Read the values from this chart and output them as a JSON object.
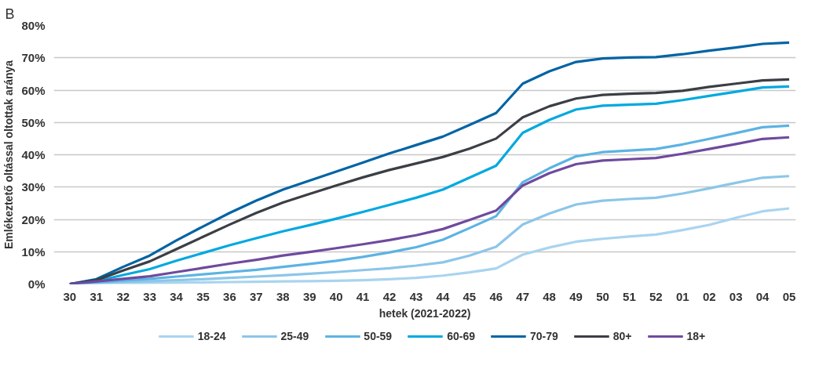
{
  "chart_data": {
    "type": "line",
    "xlabel": "hetek (2021-2022)",
    "ylabel": "Emlékeztető oltással oltottak aránya",
    "annotations": [
      "B"
    ],
    "categories": [
      "30",
      "31",
      "32",
      "33",
      "34",
      "35",
      "36",
      "37",
      "38",
      "39",
      "40",
      "41",
      "42",
      "43",
      "44",
      "45",
      "46",
      "47",
      "48",
      "49",
      "50",
      "51",
      "52",
      "01",
      "02",
      "03",
      "04",
      "05"
    ],
    "ylim": [
      0,
      0.8
    ],
    "yticks": [
      {
        "value": 0,
        "label": "0%"
      },
      {
        "value": 0.1,
        "label": "10%"
      },
      {
        "value": 0.2,
        "label": "20%"
      },
      {
        "value": 0.3,
        "label": "30%"
      },
      {
        "value": 0.4,
        "label": "40%"
      },
      {
        "value": 0.5,
        "label": "50%"
      },
      {
        "value": 0.6,
        "label": "60%"
      },
      {
        "value": 0.7,
        "label": "70%"
      },
      {
        "value": 0.8,
        "label": "80%"
      }
    ],
    "grid": "y",
    "legend": "bottom",
    "marker": "none",
    "line_style": "solid",
    "series": [
      {
        "name": "18-24",
        "color": "#a9d4ef",
        "values": [
          0,
          0.001,
          0.002,
          0.003,
          0.004,
          0.005,
          0.006,
          0.007,
          0.008,
          0.009,
          0.01,
          0.012,
          0.015,
          0.019,
          0.026,
          0.036,
          0.048,
          0.091,
          0.113,
          0.131,
          0.14,
          0.147,
          0.153,
          0.167,
          0.183,
          0.205,
          0.225,
          0.234
        ]
      },
      {
        "name": "25-49",
        "color": "#8cc6e8",
        "values": [
          0,
          0.003,
          0.006,
          0.009,
          0.012,
          0.015,
          0.019,
          0.023,
          0.027,
          0.032,
          0.037,
          0.043,
          0.049,
          0.057,
          0.067,
          0.088,
          0.115,
          0.184,
          0.218,
          0.246,
          0.258,
          0.263,
          0.267,
          0.28,
          0.296,
          0.313,
          0.329,
          0.334
        ]
      },
      {
        "name": "50-59",
        "color": "#5cb3e3",
        "values": [
          0,
          0.005,
          0.011,
          0.016,
          0.023,
          0.03,
          0.037,
          0.044,
          0.053,
          0.062,
          0.072,
          0.084,
          0.098,
          0.114,
          0.137,
          0.173,
          0.21,
          0.315,
          0.358,
          0.395,
          0.408,
          0.413,
          0.418,
          0.432,
          0.449,
          0.467,
          0.485,
          0.49
        ]
      },
      {
        "name": "60-69",
        "color": "#00a9e0",
        "values": [
          0,
          0.009,
          0.028,
          0.046,
          0.072,
          0.096,
          0.12,
          0.142,
          0.163,
          0.182,
          0.202,
          0.223,
          0.245,
          0.267,
          0.292,
          0.329,
          0.366,
          0.468,
          0.508,
          0.54,
          0.552,
          0.555,
          0.558,
          0.569,
          0.582,
          0.595,
          0.608,
          0.611
        ]
      },
      {
        "name": "70-79",
        "color": "#0064a4",
        "values": [
          0,
          0.015,
          0.053,
          0.088,
          0.135,
          0.178,
          0.22,
          0.258,
          0.292,
          0.32,
          0.348,
          0.376,
          0.404,
          0.43,
          0.456,
          0.492,
          0.529,
          0.62,
          0.658,
          0.687,
          0.698,
          0.701,
          0.702,
          0.711,
          0.722,
          0.732,
          0.743,
          0.747
        ]
      },
      {
        "name": "80+",
        "color": "#3b3f45",
        "values": [
          0,
          0.012,
          0.042,
          0.07,
          0.108,
          0.146,
          0.184,
          0.22,
          0.252,
          0.279,
          0.305,
          0.33,
          0.353,
          0.373,
          0.393,
          0.419,
          0.45,
          0.516,
          0.55,
          0.574,
          0.585,
          0.589,
          0.591,
          0.598,
          0.61,
          0.62,
          0.63,
          0.633
        ]
      },
      {
        "name": "18+",
        "color": "#6f4a9e",
        "values": [
          0,
          0.008,
          0.016,
          0.024,
          0.037,
          0.05,
          0.063,
          0.075,
          0.088,
          0.099,
          0.111,
          0.123,
          0.136,
          0.151,
          0.17,
          0.198,
          0.227,
          0.305,
          0.343,
          0.371,
          0.382,
          0.386,
          0.39,
          0.403,
          0.418,
          0.433,
          0.449,
          0.454
        ]
      }
    ]
  }
}
